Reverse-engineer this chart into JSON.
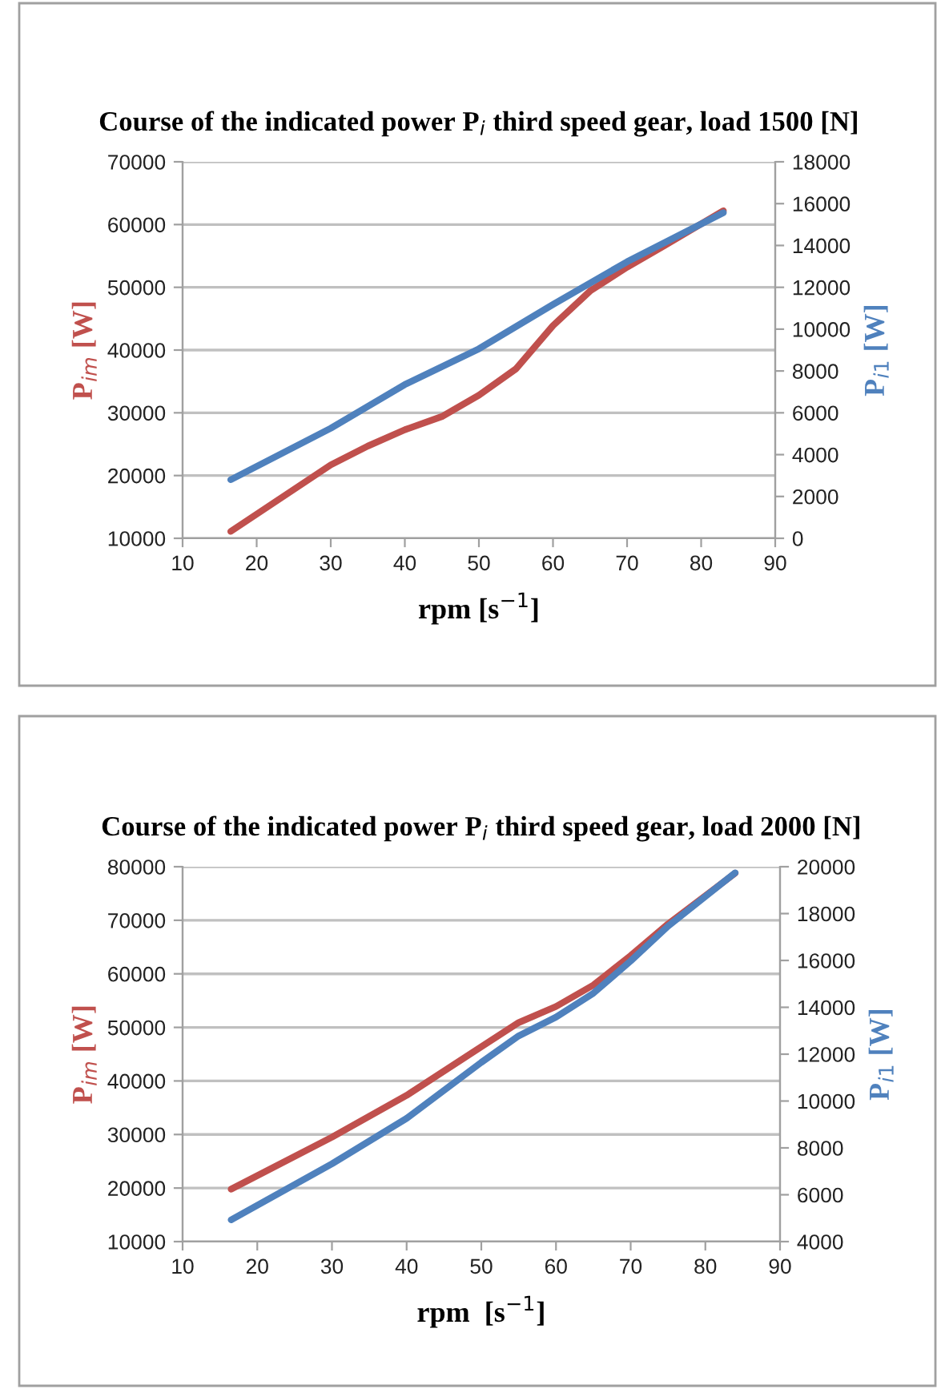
{
  "chart_data": [
    {
      "type": "line",
      "title": "Course of the indicated power P$_{i}$ third speed gear, load 1500 [N]",
      "xlabel": "rpm [s$^{−1}$]",
      "ylabel": "P$_{im}$ [W]",
      "y2label": "P$_{i1}$ [W]",
      "xlim": [
        10,
        90
      ],
      "xticks": [
        10,
        20,
        30,
        40,
        50,
        60,
        70,
        80,
        90
      ],
      "ylim": [
        10000,
        70000
      ],
      "yticks": [
        10000,
        20000,
        30000,
        40000,
        50000,
        60000,
        70000
      ],
      "y2lim": [
        0,
        18000
      ],
      "y2ticks": [
        0,
        2000,
        4000,
        6000,
        8000,
        10000,
        12000,
        14000,
        16000,
        18000
      ],
      "grid": "y",
      "legend": false,
      "line_style": "solid",
      "marker": "none",
      "series": [
        {
          "color": "#c0504d",
          "x": [
            16.5,
            30,
            35,
            40,
            45,
            50,
            55,
            60,
            65,
            70,
            75,
            83
          ],
          "values": [
            11100,
            21700,
            24700,
            27300,
            29400,
            32800,
            37000,
            43900,
            49400,
            53200,
            56600,
            62200
          ]
        },
        {
          "color": "#4f81bd",
          "axis": "y2",
          "x": [
            16.5,
            30,
            40,
            50,
            60,
            70,
            83
          ],
          "values": [
            2800,
            5260,
            7350,
            9060,
            11180,
            13220,
            15570
          ]
        }
      ]
    },
    {
      "type": "line",
      "title": "Course of the indicated power P$_{i}$ third speed gear, load 2000 [N]",
      "xlabel": "rpm  [s$^{−1}$]",
      "ylabel": "P$_{im}$ [W]",
      "y2label": "P$_{i1}$ [W]",
      "xlim": [
        10,
        90
      ],
      "xticks": [
        10,
        20,
        30,
        40,
        50,
        60,
        70,
        80,
        90
      ],
      "ylim": [
        10000,
        80000
      ],
      "yticks": [
        10000,
        20000,
        30000,
        40000,
        50000,
        60000,
        70000,
        80000
      ],
      "y2lim": [
        4000,
        20000
      ],
      "y2ticks": [
        4000,
        6000,
        8000,
        10000,
        12000,
        14000,
        16000,
        18000,
        20000
      ],
      "grid": "y",
      "legend": false,
      "line_style": "solid",
      "marker": "none",
      "series": [
        {
          "color": "#c0504d",
          "x": [
            16.5,
            30,
            40,
            50,
            55,
            60,
            65,
            70,
            75,
            84
          ],
          "values": [
            19800,
            29500,
            37300,
            46400,
            50900,
            53900,
            57900,
            63400,
            69300,
            78800
          ]
        },
        {
          "color": "#4f81bd",
          "axis": "y2",
          "x": [
            16.5,
            30,
            40,
            50,
            55,
            60,
            65,
            70,
            75,
            84
          ],
          "values": [
            4930,
            7320,
            9260,
            11650,
            12780,
            13580,
            14600,
            15980,
            17460,
            19740
          ]
        }
      ]
    }
  ]
}
